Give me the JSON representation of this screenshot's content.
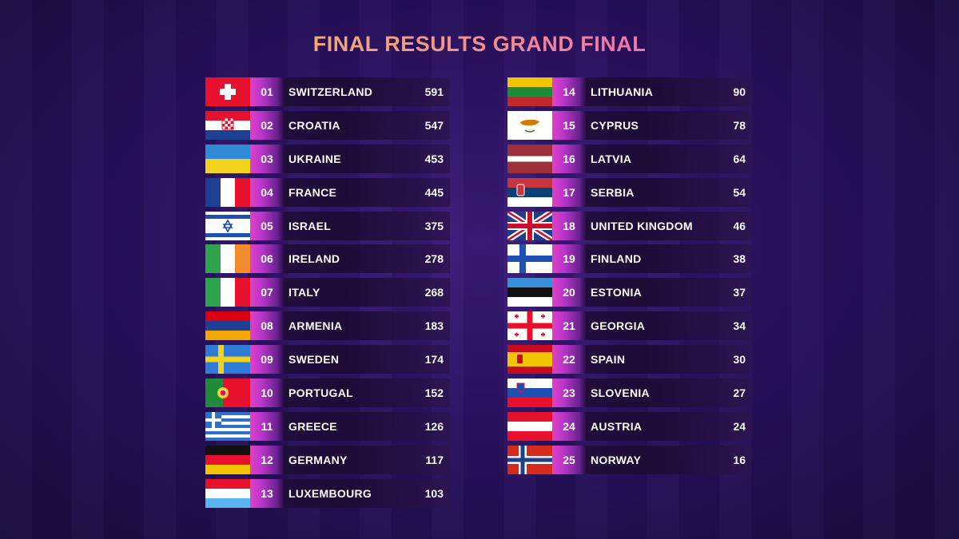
{
  "title": "FINAL RESULTS GRAND FINAL",
  "colors": {
    "rank_gradient_start": "#e040c8",
    "title_gradient": [
      "#f5c66a",
      "#ef6fb0",
      "#e45bd0"
    ],
    "background": "#2a1160"
  },
  "results": [
    {
      "rank": "01",
      "country": "SWITZERLAND",
      "points": "591",
      "flag": "switzerland-flag-icon"
    },
    {
      "rank": "02",
      "country": "CROATIA",
      "points": "547",
      "flag": "croatia-flag-icon"
    },
    {
      "rank": "03",
      "country": "UKRAINE",
      "points": "453",
      "flag": "ukraine-flag-icon"
    },
    {
      "rank": "04",
      "country": "FRANCE",
      "points": "445",
      "flag": "france-flag-icon"
    },
    {
      "rank": "05",
      "country": "ISRAEL",
      "points": "375",
      "flag": "israel-flag-icon"
    },
    {
      "rank": "06",
      "country": "IRELAND",
      "points": "278",
      "flag": "ireland-flag-icon"
    },
    {
      "rank": "07",
      "country": "ITALY",
      "points": "268",
      "flag": "italy-flag-icon"
    },
    {
      "rank": "08",
      "country": "ARMENIA",
      "points": "183",
      "flag": "armenia-flag-icon"
    },
    {
      "rank": "09",
      "country": "SWEDEN",
      "points": "174",
      "flag": "sweden-flag-icon"
    },
    {
      "rank": "10",
      "country": "PORTUGAL",
      "points": "152",
      "flag": "portugal-flag-icon"
    },
    {
      "rank": "11",
      "country": "GREECE",
      "points": "126",
      "flag": "greece-flag-icon"
    },
    {
      "rank": "12",
      "country": "GERMANY",
      "points": "117",
      "flag": "germany-flag-icon"
    },
    {
      "rank": "13",
      "country": "LUXEMBOURG",
      "points": "103",
      "flag": "luxembourg-flag-icon"
    },
    {
      "rank": "14",
      "country": "LITHUANIA",
      "points": "90",
      "flag": "lithuania-flag-icon"
    },
    {
      "rank": "15",
      "country": "CYPRUS",
      "points": "78",
      "flag": "cyprus-flag-icon"
    },
    {
      "rank": "16",
      "country": "LATVIA",
      "points": "64",
      "flag": "latvia-flag-icon"
    },
    {
      "rank": "17",
      "country": "SERBIA",
      "points": "54",
      "flag": "serbia-flag-icon"
    },
    {
      "rank": "18",
      "country": "UNITED KINGDOM",
      "points": "46",
      "flag": "united-kingdom-flag-icon"
    },
    {
      "rank": "19",
      "country": "FINLAND",
      "points": "38",
      "flag": "finland-flag-icon"
    },
    {
      "rank": "20",
      "country": "ESTONIA",
      "points": "37",
      "flag": "estonia-flag-icon"
    },
    {
      "rank": "21",
      "country": "GEORGIA",
      "points": "34",
      "flag": "georgia-flag-icon"
    },
    {
      "rank": "22",
      "country": "SPAIN",
      "points": "30",
      "flag": "spain-flag-icon"
    },
    {
      "rank": "23",
      "country": "SLOVENIA",
      "points": "27",
      "flag": "slovenia-flag-icon"
    },
    {
      "rank": "24",
      "country": "AUSTRIA",
      "points": "24",
      "flag": "austria-flag-icon"
    },
    {
      "rank": "25",
      "country": "NORWAY",
      "points": "16",
      "flag": "norway-flag-icon"
    }
  ]
}
